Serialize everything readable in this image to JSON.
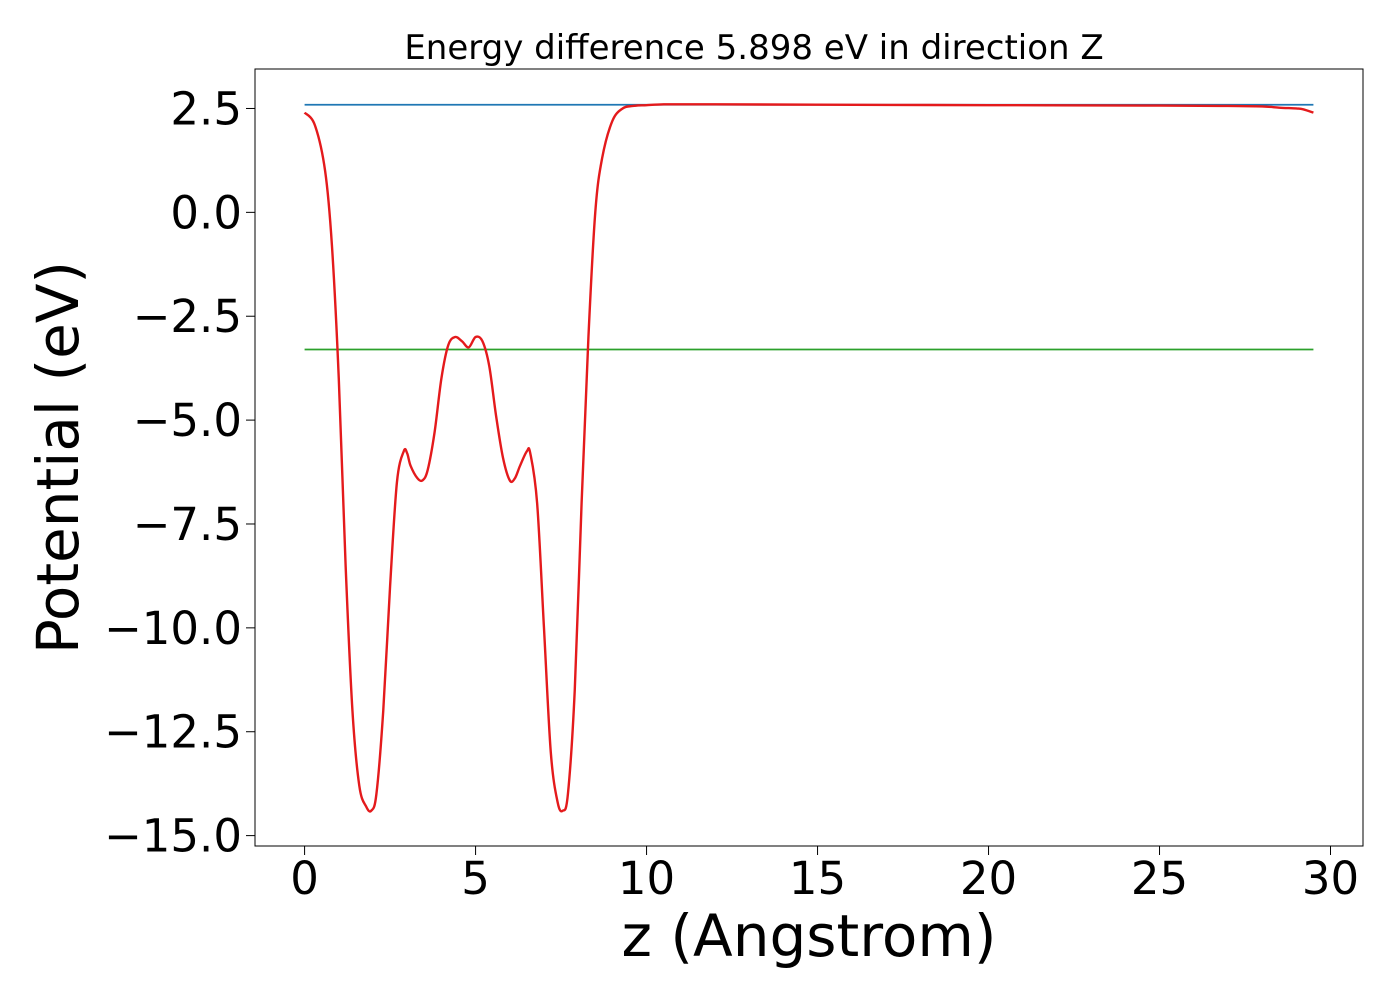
{
  "chart_data": {
    "type": "line",
    "title": "Energy difference 5.898 eV in direction Z",
    "xlabel": "z (Angstrom)",
    "ylabel": "Potential (eV)",
    "xlim": [
      -1.45,
      30.95
    ],
    "ylim": [
      -15.25,
      3.45
    ],
    "x_ticks": [
      0,
      5,
      10,
      15,
      20,
      25,
      30
    ],
    "x_tick_labels": [
      "0",
      "5",
      "10",
      "15",
      "20",
      "25",
      "30"
    ],
    "y_ticks": [
      2.5,
      0.0,
      -2.5,
      -5.0,
      -7.5,
      -10.0,
      -12.5,
      -15.0
    ],
    "y_tick_labels": [
      "2.5",
      "0.0",
      "−2.5",
      "−5.0",
      "−7.5",
      "−10.0",
      "−12.5",
      "−15.0"
    ],
    "grid": false,
    "legend": "none",
    "series": [
      {
        "color": "#1f77b4",
        "x": [
          0,
          29.5
        ],
        "y": [
          2.59,
          2.59
        ]
      },
      {
        "color": "#2ca02c",
        "x": [
          0,
          29.5
        ],
        "y": [
          -3.3,
          -3.3
        ]
      },
      {
        "color": "#e41a1c",
        "x": [
          0,
          0.3,
          0.6,
          0.8,
          1.0,
          1.2,
          1.4,
          1.6,
          1.8,
          1.95,
          2.1,
          2.3,
          2.5,
          2.7,
          2.9,
          3.0,
          3.1,
          3.3,
          3.45,
          3.6,
          3.8,
          4.0,
          4.2,
          4.4,
          4.6,
          4.8,
          5.0,
          5.2,
          5.4,
          5.6,
          5.8,
          6.0,
          6.15,
          6.3,
          6.5,
          6.6,
          6.8,
          7.0,
          7.2,
          7.4,
          7.55,
          7.7,
          7.9,
          8.1,
          8.3,
          8.5,
          8.7,
          9.0,
          9.3,
          9.6,
          10.0,
          10.5,
          11.0,
          12.0,
          15.0,
          20.0,
          25.0,
          27.0,
          28.0,
          28.5,
          29.0,
          29.2,
          29.5
        ],
        "y": [
          2.4,
          2.1,
          1.0,
          -0.8,
          -4.0,
          -8.5,
          -12.0,
          -13.8,
          -14.3,
          -14.4,
          -14.0,
          -12.0,
          -9.0,
          -6.5,
          -5.75,
          -5.8,
          -6.1,
          -6.4,
          -6.45,
          -6.2,
          -5.3,
          -4.0,
          -3.2,
          -3.0,
          -3.1,
          -3.25,
          -3.0,
          -3.1,
          -3.7,
          -4.9,
          -5.9,
          -6.45,
          -6.4,
          -6.1,
          -5.75,
          -5.8,
          -7.0,
          -10.0,
          -13.0,
          -14.2,
          -14.4,
          -14.0,
          -11.5,
          -7.0,
          -3.0,
          0.0,
          1.3,
          2.2,
          2.5,
          2.56,
          2.58,
          2.6,
          2.6,
          2.6,
          2.59,
          2.58,
          2.57,
          2.56,
          2.55,
          2.52,
          2.5,
          2.48,
          2.4
        ]
      }
    ]
  }
}
